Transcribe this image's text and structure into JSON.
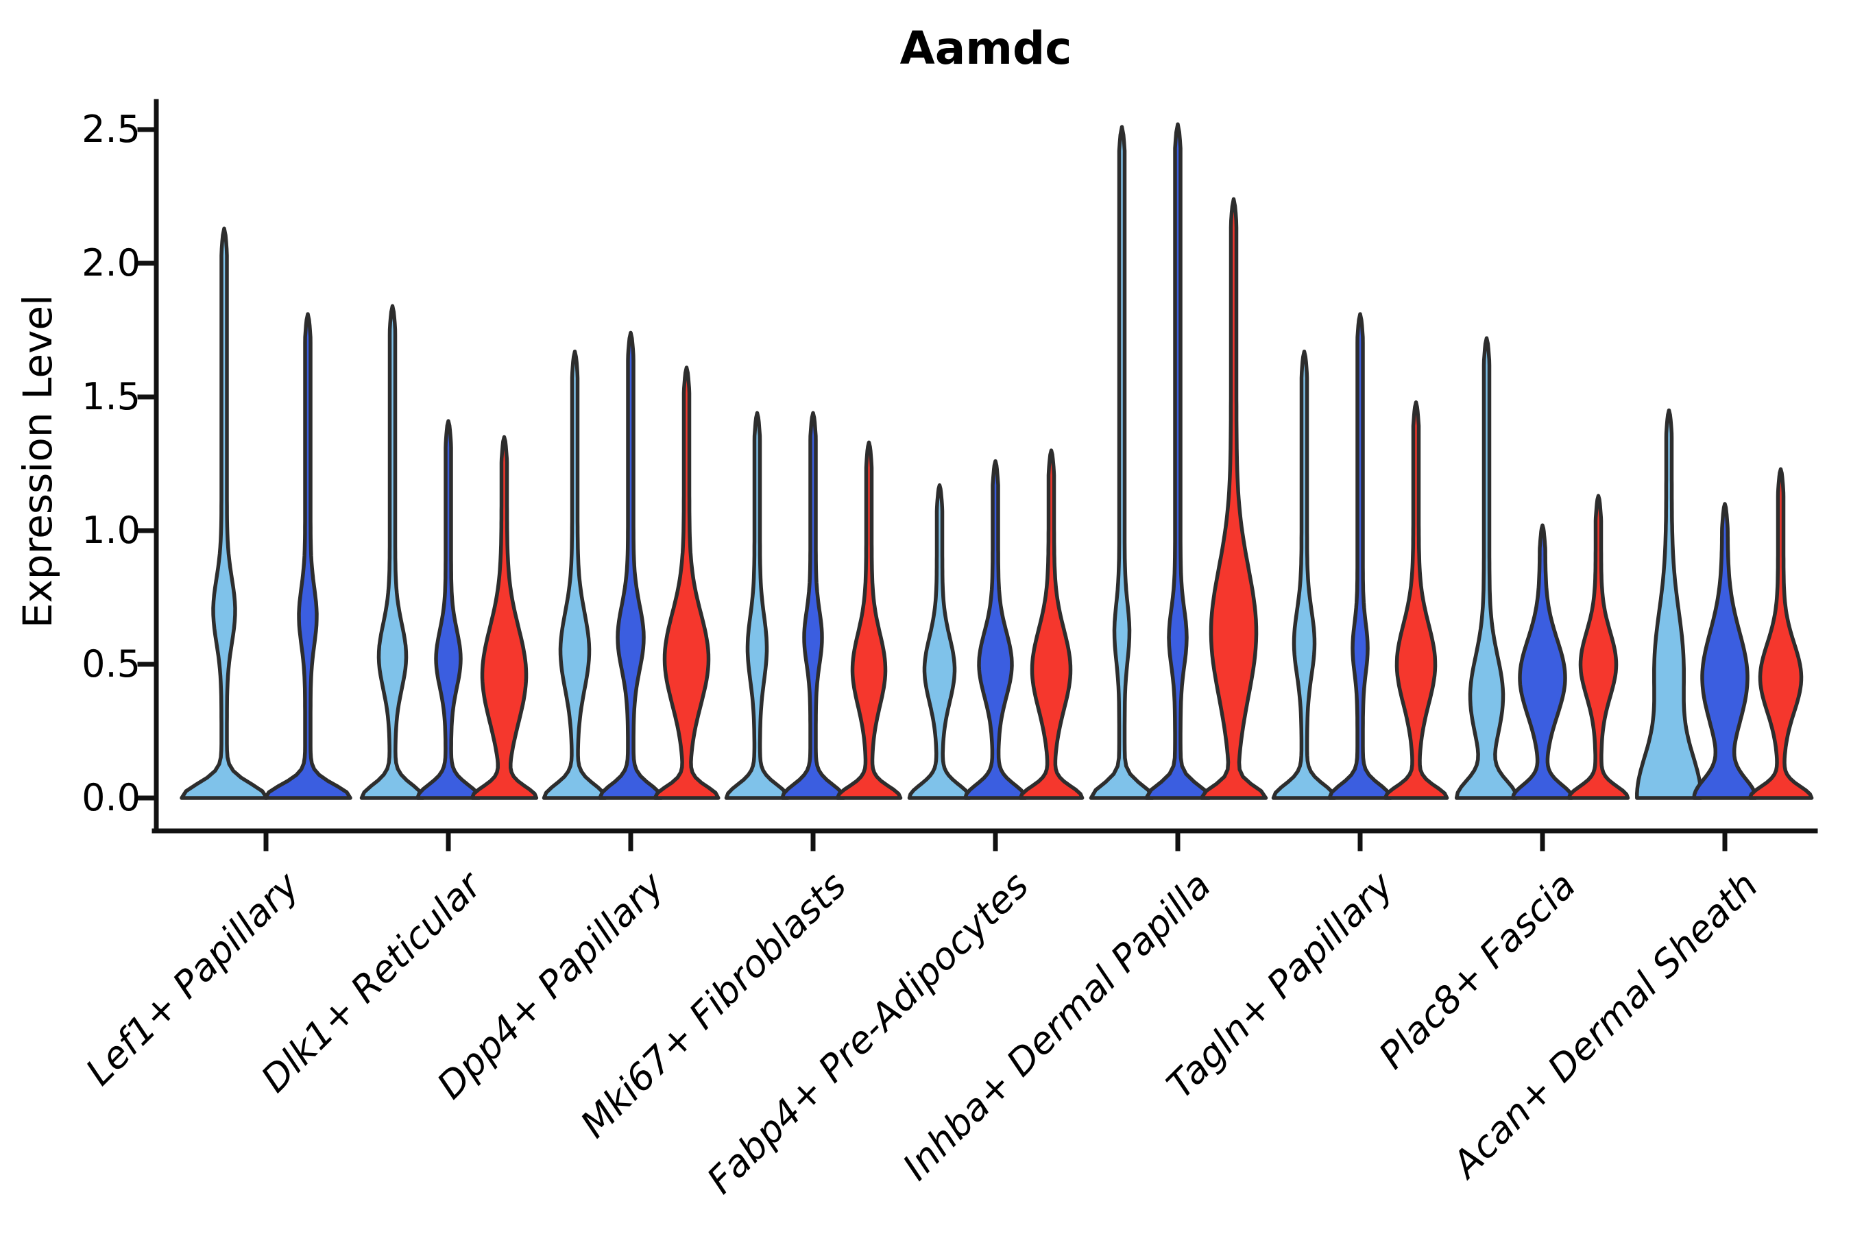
{
  "chart_data": {
    "type": "violin",
    "title": "Aamdc",
    "xlabel": "",
    "ylabel": "Expression Level",
    "ylim": [
      0,
      2.6
    ],
    "grid": false,
    "legend": "none",
    "y_ticks": [
      0.0,
      0.5,
      1.0,
      1.5,
      2.0,
      2.5
    ],
    "y_tick_labels": [
      "0.0",
      "0.5",
      "1.0",
      "1.5",
      "2.0",
      "2.5"
    ],
    "categories": [
      "Lef1+ Papillary",
      "Dlk1+ Reticular",
      "Dpp4+ Papillary",
      "Mki67+ Fibroblasts",
      "Fabp4+ Pre-Adipocytes",
      "Inhba+ Dermal Papilla",
      "Tagln+ Papillary",
      "Plac8+ Fascia",
      "Acan+ Dermal Sheath"
    ],
    "series": [
      {
        "id": "light-blue",
        "color": "#7FC2EA"
      },
      {
        "id": "dark-blue",
        "color": "#3B5EE0"
      },
      {
        "id": "red",
        "color": "#F5372D"
      }
    ],
    "edge_color": "#2D2D2D",
    "violins": [
      {
        "category": 0,
        "series": 0,
        "max_expression": 2.13,
        "profile": {
          "base": 58,
          "bs": 0.075,
          "mid": 12,
          "mc": 0.7,
          "ms": 0.17,
          "stem": 4
        }
      },
      {
        "category": 0,
        "series": 1,
        "max_expression": 1.81,
        "profile": {
          "base": 58,
          "bs": 0.07,
          "mid": 9,
          "mc": 0.68,
          "ms": 0.15,
          "stem": 4
        }
      },
      {
        "category": 1,
        "series": 0,
        "max_expression": 1.84,
        "profile": {
          "base": 41,
          "bs": 0.07,
          "mid": 16,
          "mc": 0.53,
          "ms": 0.17,
          "stem": 4
        }
      },
      {
        "category": 1,
        "series": 1,
        "max_expression": 1.41,
        "profile": {
          "base": 41,
          "bs": 0.07,
          "mid": 14,
          "mc": 0.52,
          "ms": 0.15,
          "stem": 4
        }
      },
      {
        "category": 1,
        "series": 2,
        "max_expression": 1.35,
        "profile": {
          "base": 42,
          "bs": 0.06,
          "mid": 28,
          "mc": 0.46,
          "ms": 0.25,
          "stem": 4
        }
      },
      {
        "category": 2,
        "series": 0,
        "max_expression": 1.67,
        "profile": {
          "base": 41,
          "bs": 0.07,
          "mid": 17,
          "mc": 0.55,
          "ms": 0.2,
          "stem": 4
        }
      },
      {
        "category": 2,
        "series": 1,
        "max_expression": 1.74,
        "profile": {
          "base": 41,
          "bs": 0.07,
          "mid": 15,
          "mc": 0.6,
          "ms": 0.17,
          "stem": 4
        }
      },
      {
        "category": 2,
        "series": 2,
        "max_expression": 1.61,
        "profile": {
          "base": 42,
          "bs": 0.06,
          "mid": 28,
          "mc": 0.52,
          "ms": 0.24,
          "stem": 4
        }
      },
      {
        "category": 3,
        "series": 0,
        "max_expression": 1.44,
        "profile": {
          "base": 41,
          "bs": 0.07,
          "mid": 10,
          "mc": 0.56,
          "ms": 0.17,
          "stem": 4
        }
      },
      {
        "category": 3,
        "series": 1,
        "max_expression": 1.44,
        "profile": {
          "base": 41,
          "bs": 0.07,
          "mid": 9,
          "mc": 0.6,
          "ms": 0.14,
          "stem": 4
        }
      },
      {
        "category": 3,
        "series": 2,
        "max_expression": 1.33,
        "profile": {
          "base": 42,
          "bs": 0.06,
          "mid": 20,
          "mc": 0.48,
          "ms": 0.19,
          "stem": 4
        }
      },
      {
        "category": 4,
        "series": 0,
        "max_expression": 1.17,
        "profile": {
          "base": 40,
          "bs": 0.07,
          "mid": 18,
          "mc": 0.48,
          "ms": 0.17,
          "stem": 4
        }
      },
      {
        "category": 4,
        "series": 1,
        "max_expression": 1.26,
        "profile": {
          "base": 40,
          "bs": 0.07,
          "mid": 20,
          "mc": 0.5,
          "ms": 0.17,
          "stem": 4
        }
      },
      {
        "category": 4,
        "series": 2,
        "max_expression": 1.3,
        "profile": {
          "base": 41,
          "bs": 0.06,
          "mid": 24,
          "mc": 0.48,
          "ms": 0.21,
          "stem": 4
        }
      },
      {
        "category": 5,
        "series": 0,
        "max_expression": 2.51,
        "profile": {
          "base": 41,
          "bs": 0.07,
          "mid": 7,
          "mc": 0.62,
          "ms": 0.15,
          "stem": 4
        }
      },
      {
        "category": 5,
        "series": 1,
        "max_expression": 2.52,
        "profile": {
          "base": 42,
          "bs": 0.07,
          "mid": 9,
          "mc": 0.6,
          "ms": 0.15,
          "stem": 4
        }
      },
      {
        "category": 5,
        "series": 2,
        "max_expression": 2.24,
        "profile": {
          "base": 42,
          "bs": 0.06,
          "mid": 29,
          "mc": 0.62,
          "ms": 0.34,
          "stem": 4
        }
      },
      {
        "category": 6,
        "series": 0,
        "max_expression": 1.67,
        "profile": {
          "base": 41,
          "bs": 0.07,
          "mid": 11,
          "mc": 0.58,
          "ms": 0.17,
          "stem": 4
        }
      },
      {
        "category": 6,
        "series": 1,
        "max_expression": 1.81,
        "profile": {
          "base": 41,
          "bs": 0.07,
          "mid": 7,
          "mc": 0.56,
          "ms": 0.13,
          "stem": 4
        }
      },
      {
        "category": 6,
        "series": 2,
        "max_expression": 1.48,
        "profile": {
          "base": 41,
          "bs": 0.06,
          "mid": 24,
          "mc": 0.5,
          "ms": 0.21,
          "stem": 4
        }
      },
      {
        "category": 7,
        "series": 0,
        "max_expression": 1.72,
        "profile": {
          "base": 39,
          "bs": 0.09,
          "mid": 20,
          "mc": 0.38,
          "ms": 0.21,
          "stem": 4
        }
      },
      {
        "category": 7,
        "series": 1,
        "max_expression": 1.02,
        "profile": {
          "base": 39,
          "bs": 0.07,
          "mid": 29,
          "mc": 0.45,
          "ms": 0.2,
          "stem": 4
        }
      },
      {
        "category": 7,
        "series": 2,
        "max_expression": 1.13,
        "profile": {
          "base": 39,
          "bs": 0.06,
          "mid": 22,
          "mc": 0.5,
          "ms": 0.17,
          "stem": 4
        }
      },
      {
        "category": 8,
        "series": 0,
        "max_expression": 1.45,
        "profile": {
          "base": 42,
          "bs": 0.24,
          "mid": 17,
          "mc": 0.5,
          "ms": 0.28,
          "stem": 4
        }
      },
      {
        "category": 8,
        "series": 1,
        "max_expression": 1.1,
        "profile": {
          "base": 40,
          "bs": 0.1,
          "mid": 29,
          "mc": 0.45,
          "ms": 0.24,
          "stem": 4
        }
      },
      {
        "category": 8,
        "series": 2,
        "max_expression": 1.23,
        "profile": {
          "base": 41,
          "bs": 0.06,
          "mid": 26,
          "mc": 0.45,
          "ms": 0.18,
          "stem": 4
        }
      }
    ]
  }
}
